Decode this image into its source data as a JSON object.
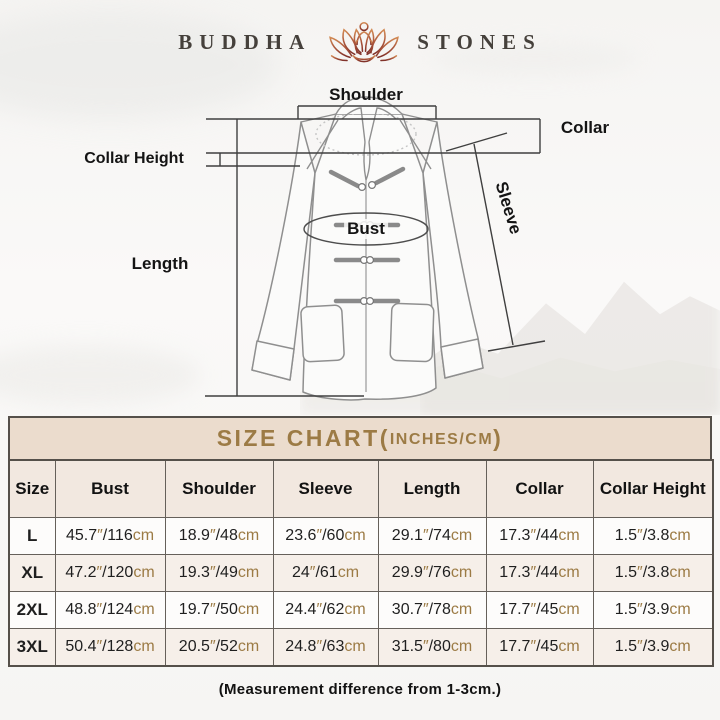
{
  "logo": {
    "brand_left": "BUDDHA",
    "brand_right": "STONES",
    "icon": "lotus-meditation-icon"
  },
  "diagram": {
    "labels": {
      "shoulder": "Shoulder",
      "collar": "Collar",
      "collar_height": "Collar Height",
      "bust": "Bust",
      "sleeve": "Sleeve",
      "length": "Length"
    }
  },
  "size_chart": {
    "title_main": "SIZE CHART(",
    "title_sub": "INCHES/CM",
    "title_close": ")",
    "columns": [
      "Size",
      "Bust",
      "Shoulder",
      "Sleeve",
      "Length",
      "Collar",
      "Collar Height"
    ],
    "unit_inch_mark": "″",
    "separator": "/",
    "unit_cm": "cm",
    "rows": [
      {
        "size": "L",
        "measurements": [
          [
            "45.7",
            "116"
          ],
          [
            "18.9",
            "48"
          ],
          [
            "23.6",
            "60"
          ],
          [
            "29.1",
            "74"
          ],
          [
            "17.3",
            "44"
          ],
          [
            "1.5",
            "3.8"
          ]
        ]
      },
      {
        "size": "XL",
        "measurements": [
          [
            "47.2",
            "120"
          ],
          [
            "19.3",
            "49"
          ],
          [
            "24",
            "61"
          ],
          [
            "29.9",
            "76"
          ],
          [
            "17.3",
            "44"
          ],
          [
            "1.5",
            "3.8"
          ]
        ]
      },
      {
        "size": "2XL",
        "measurements": [
          [
            "48.8",
            "124"
          ],
          [
            "19.7",
            "50"
          ],
          [
            "24.4",
            "62"
          ],
          [
            "30.7",
            "78"
          ],
          [
            "17.7",
            "45"
          ],
          [
            "1.5",
            "3.9"
          ]
        ]
      },
      {
        "size": "3XL",
        "measurements": [
          [
            "50.4",
            "128"
          ],
          [
            "20.5",
            "52"
          ],
          [
            "24.8",
            "63"
          ],
          [
            "31.5",
            "80"
          ],
          [
            "17.7",
            "45"
          ],
          [
            "1.5",
            "3.9"
          ]
        ]
      }
    ],
    "colors": {
      "accent": "#9c7b45",
      "banner_bg": "#ebdccd",
      "header_row_bg": "#f2e8e0",
      "alt_row_bg": "#f6efe9",
      "border": "#55504a"
    }
  },
  "footer_note": "(Measurement difference from 1-3cm.)"
}
